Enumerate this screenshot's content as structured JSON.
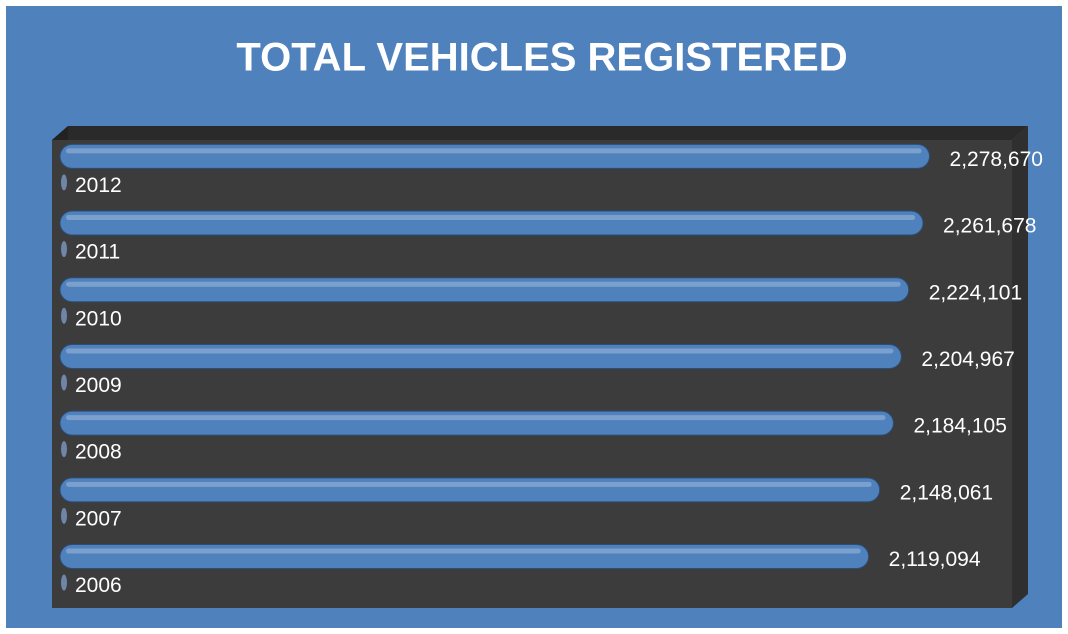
{
  "chart_data": {
    "type": "bar",
    "title": "TOTAL VEHICLES REGISTERED",
    "categories": [
      "2012",
      "2011",
      "2010",
      "2009",
      "2008",
      "2007",
      "2006"
    ],
    "values": [
      2278670,
      2261678,
      2224101,
      2204967,
      2184105,
      2148061,
      2119094
    ],
    "value_labels": [
      "2,278,670",
      "2,261,678",
      "2,224,101",
      "2,204,967",
      "2,184,105",
      "2,148,061",
      "2,119,094"
    ],
    "color": "#4f81bd",
    "xlim": [
      0,
      2500000
    ]
  }
}
